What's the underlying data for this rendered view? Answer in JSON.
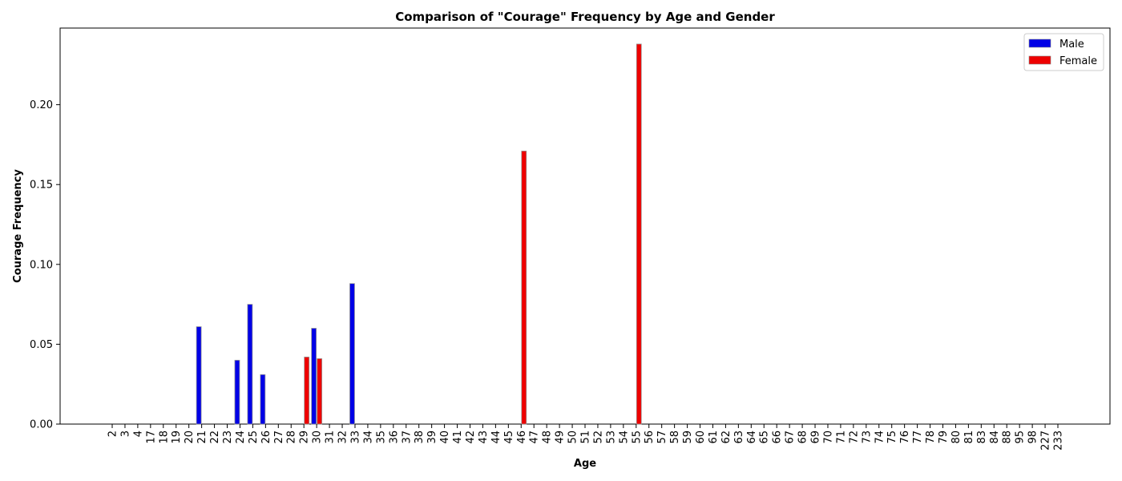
{
  "chart_data": {
    "type": "bar",
    "title": "Comparison of \"Courage\" Frequency by Age and Gender",
    "xlabel": "Age",
    "ylabel": "Courage Frequency",
    "ylim": [
      0,
      0.248
    ],
    "yticks": [
      "0.00",
      "0.05",
      "0.10",
      "0.15",
      "0.20"
    ],
    "categories": [
      "2",
      "3",
      "4",
      "17",
      "18",
      "19",
      "20",
      "21",
      "22",
      "23",
      "24",
      "25",
      "26",
      "27",
      "28",
      "29",
      "30",
      "31",
      "32",
      "33",
      "34",
      "35",
      "36",
      "37",
      "38",
      "39",
      "40",
      "41",
      "42",
      "43",
      "44",
      "45",
      "46",
      "47",
      "48",
      "49",
      "50",
      "51",
      "52",
      "53",
      "54",
      "55",
      "56",
      "57",
      "58",
      "59",
      "60",
      "61",
      "62",
      "63",
      "64",
      "65",
      "66",
      "67",
      "68",
      "69",
      "70",
      "71",
      "72",
      "73",
      "74",
      "75",
      "76",
      "77",
      "78",
      "79",
      "80",
      "81",
      "83",
      "84",
      "88",
      "95",
      "98",
      "227",
      "233"
    ],
    "series": [
      {
        "name": "Male",
        "color": "#0000e6",
        "values": [
          0,
          0,
          0,
          0,
          0,
          0,
          0,
          0.061,
          0,
          0,
          0.04,
          0.075,
          0.031,
          0,
          0,
          0,
          0.06,
          0,
          0,
          0.088,
          0,
          0,
          0,
          0,
          0,
          0,
          0,
          0,
          0,
          0,
          0,
          0,
          0,
          0,
          0,
          0,
          0,
          0,
          0,
          0,
          0,
          0,
          0,
          0,
          0,
          0,
          0,
          0,
          0,
          0,
          0,
          0,
          0,
          0,
          0,
          0,
          0,
          0,
          0,
          0,
          0,
          0,
          0,
          0,
          0,
          0,
          0,
          0,
          0,
          0,
          0,
          0,
          0,
          0,
          0
        ]
      },
      {
        "name": "Female",
        "color": "#ee0000",
        "values": [
          0,
          0,
          0,
          0,
          0,
          0,
          0,
          0,
          0,
          0,
          0,
          0,
          0,
          0,
          0,
          0.042,
          0.041,
          0,
          0,
          0,
          0,
          0,
          0,
          0,
          0,
          0,
          0,
          0,
          0,
          0,
          0,
          0,
          0.171,
          0,
          0,
          0,
          0,
          0,
          0,
          0,
          0,
          0.238,
          0,
          0,
          0,
          0,
          0,
          0,
          0,
          0,
          0,
          0,
          0,
          0,
          0,
          0,
          0,
          0,
          0,
          0,
          0,
          0,
          0,
          0,
          0,
          0,
          0,
          0,
          0,
          0,
          0,
          0,
          0,
          0,
          0
        ]
      }
    ],
    "legend_position": "top-right",
    "grid": false
  }
}
